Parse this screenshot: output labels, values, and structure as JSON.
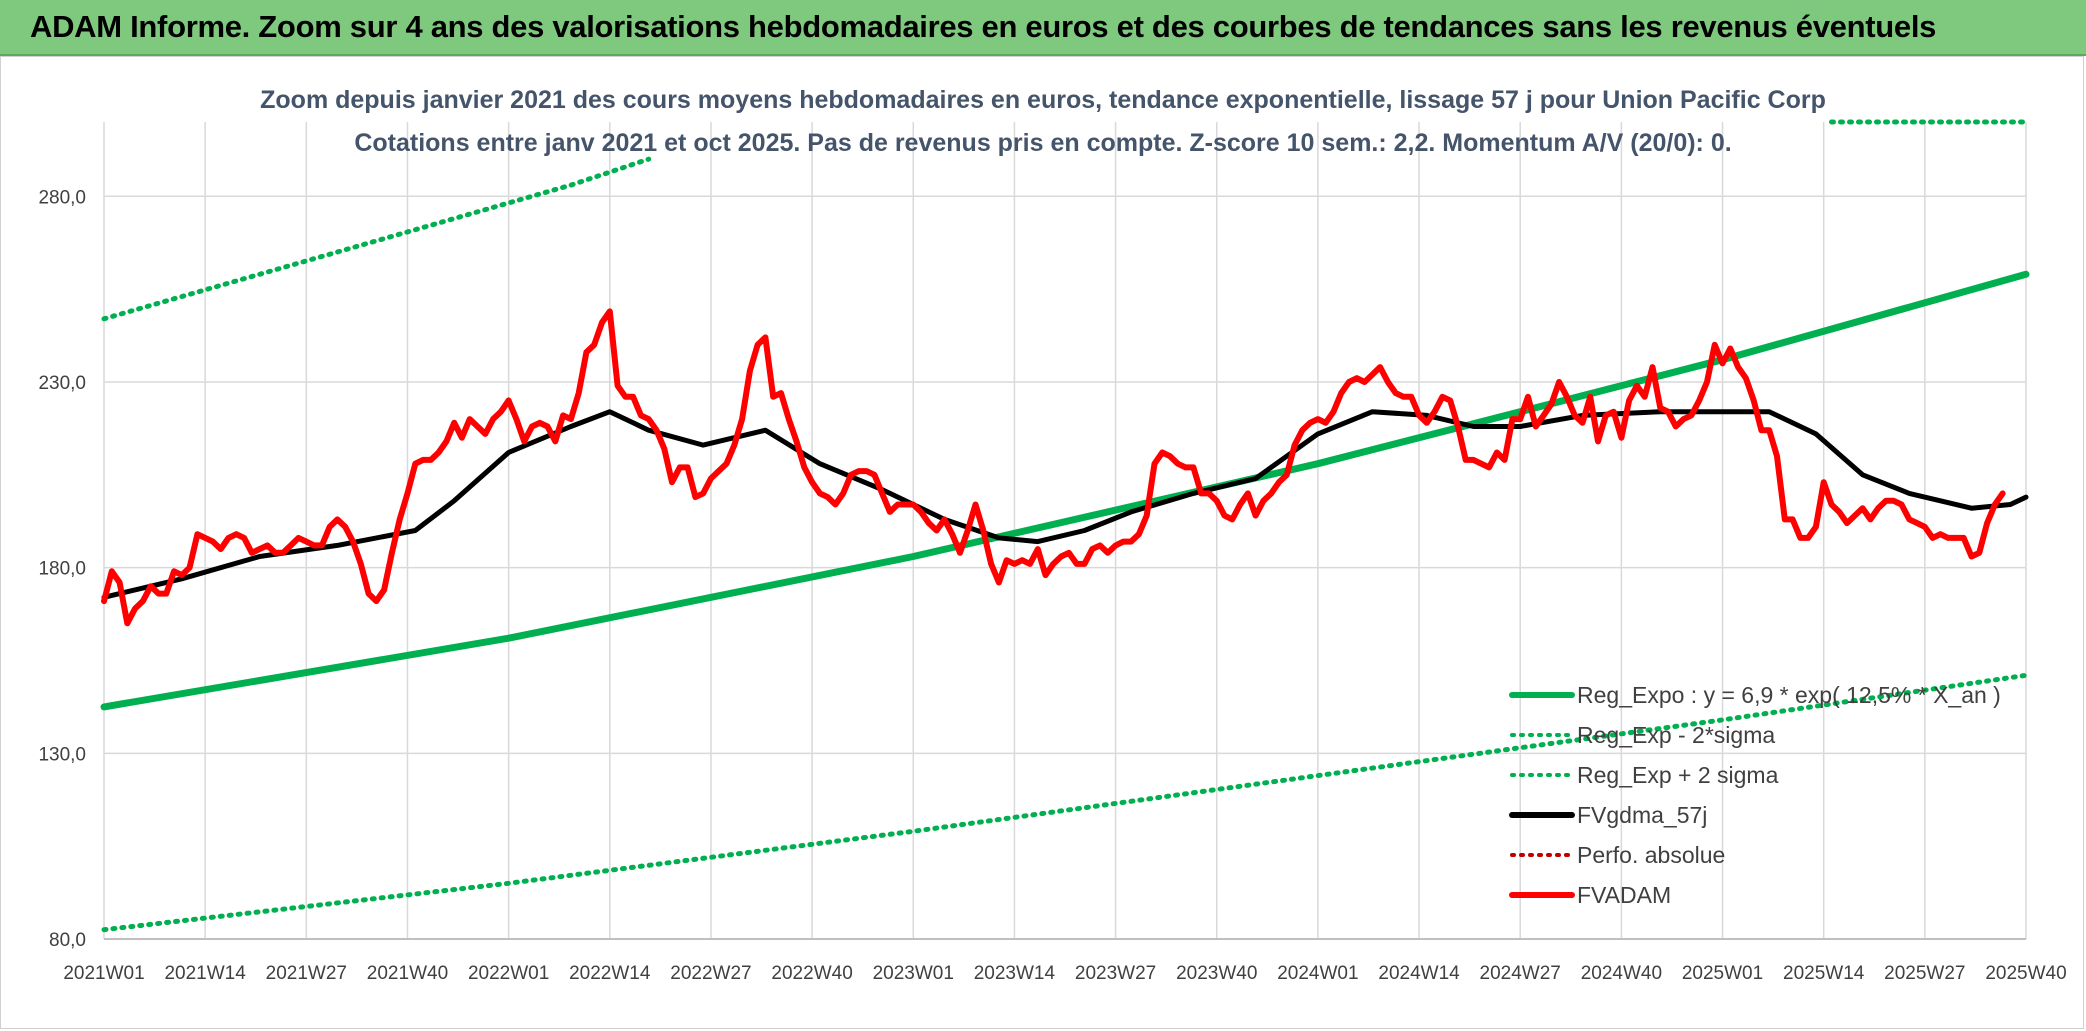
{
  "banner": {
    "title": "ADAM Informe. Zoom sur 4 ans des valorisations hebdomadaires en euros et des courbes de tendances sans les revenus éventuels"
  },
  "colors": {
    "banner": "#7fc97f",
    "trend": "#00b050",
    "smooth": "#000000",
    "price": "#ff0000",
    "perf": "#c00000",
    "grid": "#d9d9d9"
  },
  "chart_data": {
    "type": "line",
    "title": "Zoom depuis janvier 2021 des cours moyens hebdomadaires en euros, tendance exponentielle, lissage 57 j pour Union Pacific Corp",
    "subtitle": "Cotations entre janv 2021 et oct 2025. Pas de revenus pris en compte. Z-score 10 sem.: 2,2. Momentum A/V (20/0): 0.",
    "ylim": [
      80,
      300
    ],
    "yticks": [
      "80,0",
      "130,0",
      "180,0",
      "230,0",
      "280,0"
    ],
    "ytick_values": [
      80,
      130,
      180,
      230,
      280
    ],
    "x_range": [
      0,
      247
    ],
    "xticks": [
      "2021W01",
      "2021W14",
      "2021W27",
      "2021W40",
      "2022W01",
      "2022W14",
      "2022W27",
      "2022W40",
      "2023W01",
      "2023W14",
      "2023W27",
      "2023W40",
      "2024W01",
      "2024W14",
      "2024W27",
      "2024W40",
      "2025W01",
      "2025W14",
      "2025W27",
      "2025W40"
    ],
    "xtick_positions": [
      0,
      13,
      26,
      39,
      52,
      65,
      78,
      91,
      104,
      117,
      130,
      143,
      156,
      169,
      182,
      195,
      208,
      221,
      234,
      247
    ],
    "legend": [
      {
        "name": "Reg_Expo : y = 6,9 * exp( 12,5% * X_an )",
        "style": "solid",
        "color": "#00b050"
      },
      {
        "name": "Reg_Exp - 2*sigma",
        "style": "dotted",
        "color": "#00b050"
      },
      {
        "name": "Reg_Exp + 2 sigma",
        "style": "dotted",
        "color": "#00b050"
      },
      {
        "name": "FVgdma_57j",
        "style": "solid",
        "color": "#000000"
      },
      {
        "name": "Perfo. absolue",
        "style": "dotted",
        "color": "#c00000"
      },
      {
        "name": "FVADAM",
        "style": "solid",
        "color": "#ff0000"
      }
    ],
    "series": [
      {
        "name": "Reg_Expo",
        "points": [
          [
            0,
            142.5
          ],
          [
            52,
            161
          ],
          [
            104,
            183
          ],
          [
            156,
            208
          ],
          [
            208,
            236
          ],
          [
            247,
            259
          ]
        ]
      },
      {
        "name": "Reg_Exp - 2*sigma",
        "points": [
          [
            0,
            82.5
          ],
          [
            52,
            95
          ],
          [
            104,
            109
          ],
          [
            156,
            124
          ],
          [
            208,
            139
          ],
          [
            247,
            151
          ]
        ]
      },
      {
        "name": "Reg_Exp + 2 sigma",
        "points": [
          [
            0,
            247
          ],
          [
            30,
            265
          ],
          [
            60,
            283
          ],
          [
            70,
            290
          ]
        ]
      },
      {
        "name": "Reg_Exp + 2 sigma (right)",
        "points": [
          [
            222,
            300
          ],
          [
            247,
            300
          ]
        ]
      },
      {
        "name": "FVgdma_57j",
        "points": [
          [
            0,
            172
          ],
          [
            10,
            177
          ],
          [
            20,
            183
          ],
          [
            30,
            186
          ],
          [
            40,
            190
          ],
          [
            45,
            198
          ],
          [
            52,
            211
          ],
          [
            60,
            218
          ],
          [
            65,
            222
          ],
          [
            70,
            217
          ],
          [
            77,
            213
          ],
          [
            85,
            217
          ],
          [
            92,
            208
          ],
          [
            100,
            201
          ],
          [
            108,
            193
          ],
          [
            115,
            188
          ],
          [
            120,
            187
          ],
          [
            126,
            190
          ],
          [
            132,
            195
          ],
          [
            140,
            200
          ],
          [
            148,
            204
          ],
          [
            156,
            216
          ],
          [
            163,
            222
          ],
          [
            170,
            221
          ],
          [
            176,
            218
          ],
          [
            182,
            218
          ],
          [
            190,
            221
          ],
          [
            200,
            222
          ],
          [
            208,
            222
          ],
          [
            214,
            222
          ],
          [
            220,
            216
          ],
          [
            226,
            205
          ],
          [
            232,
            200
          ],
          [
            240,
            196
          ],
          [
            245,
            197
          ],
          [
            247,
            199
          ]
        ]
      },
      {
        "name": "FVADAM",
        "points": [
          [
            0,
            171
          ],
          [
            1,
            179
          ],
          [
            2,
            176
          ],
          [
            3,
            165
          ],
          [
            4,
            169
          ],
          [
            5,
            171
          ],
          [
            6,
            175
          ],
          [
            7,
            173
          ],
          [
            8,
            173
          ],
          [
            9,
            179
          ],
          [
            10,
            178
          ],
          [
            11,
            180
          ],
          [
            12,
            189
          ],
          [
            13,
            188
          ],
          [
            14,
            187
          ],
          [
            15,
            185
          ],
          [
            16,
            188
          ],
          [
            17,
            189
          ],
          [
            18,
            188
          ],
          [
            19,
            184
          ],
          [
            20,
            185
          ],
          [
            21,
            186
          ],
          [
            22,
            184
          ],
          [
            23,
            184
          ],
          [
            24,
            186
          ],
          [
            25,
            188
          ],
          [
            26,
            187
          ],
          [
            27,
            186
          ],
          [
            28,
            186
          ],
          [
            29,
            191
          ],
          [
            30,
            193
          ],
          [
            31,
            191
          ],
          [
            32,
            187
          ],
          [
            33,
            181
          ],
          [
            34,
            173
          ],
          [
            35,
            171
          ],
          [
            36,
            174
          ],
          [
            37,
            184
          ],
          [
            38,
            193
          ],
          [
            39,
            200
          ],
          [
            40,
            208
          ],
          [
            41,
            209
          ],
          [
            42,
            209
          ],
          [
            43,
            211
          ],
          [
            44,
            214
          ],
          [
            45,
            219
          ],
          [
            46,
            215
          ],
          [
            47,
            220
          ],
          [
            48,
            218
          ],
          [
            49,
            216
          ],
          [
            50,
            220
          ],
          [
            51,
            222
          ],
          [
            52,
            225
          ],
          [
            53,
            220
          ],
          [
            54,
            214
          ],
          [
            55,
            218
          ],
          [
            56,
            219
          ],
          [
            57,
            218
          ],
          [
            58,
            214
          ],
          [
            59,
            221
          ],
          [
            60,
            220
          ],
          [
            61,
            227
          ],
          [
            62,
            238
          ],
          [
            63,
            240
          ],
          [
            64,
            246
          ],
          [
            65,
            249
          ],
          [
            66,
            229
          ],
          [
            67,
            226
          ],
          [
            68,
            226
          ],
          [
            69,
            221
          ],
          [
            70,
            220
          ],
          [
            71,
            217
          ],
          [
            72,
            212
          ],
          [
            73,
            203
          ],
          [
            74,
            207
          ],
          [
            75,
            207
          ],
          [
            76,
            199
          ],
          [
            77,
            200
          ],
          [
            78,
            204
          ],
          [
            79,
            206
          ],
          [
            80,
            208
          ],
          [
            81,
            213
          ],
          [
            82,
            220
          ],
          [
            83,
            233
          ],
          [
            84,
            240
          ],
          [
            85,
            242
          ],
          [
            86,
            226
          ],
          [
            87,
            227
          ],
          [
            88,
            220
          ],
          [
            89,
            214
          ],
          [
            90,
            207
          ],
          [
            91,
            203
          ],
          [
            92,
            200
          ],
          [
            93,
            199
          ],
          [
            94,
            197
          ],
          [
            95,
            200
          ],
          [
            96,
            205
          ],
          [
            97,
            206
          ],
          [
            98,
            206
          ],
          [
            99,
            205
          ],
          [
            100,
            200
          ],
          [
            101,
            195
          ],
          [
            102,
            197
          ],
          [
            103,
            197
          ],
          [
            104,
            197
          ],
          [
            105,
            195
          ],
          [
            106,
            192
          ],
          [
            107,
            190
          ],
          [
            108,
            193
          ],
          [
            109,
            189
          ],
          [
            110,
            184
          ],
          [
            111,
            190
          ],
          [
            112,
            197
          ],
          [
            113,
            190
          ],
          [
            114,
            181
          ],
          [
            115,
            176
          ],
          [
            116,
            182
          ],
          [
            117,
            181
          ],
          [
            118,
            182
          ],
          [
            119,
            181
          ],
          [
            120,
            185
          ],
          [
            121,
            178
          ],
          [
            122,
            181
          ],
          [
            123,
            183
          ],
          [
            124,
            184
          ],
          [
            125,
            181
          ],
          [
            126,
            181
          ],
          [
            127,
            185
          ],
          [
            128,
            186
          ],
          [
            129,
            184
          ],
          [
            130,
            186
          ],
          [
            131,
            187
          ],
          [
            132,
            187
          ],
          [
            133,
            189
          ],
          [
            134,
            194
          ],
          [
            135,
            208
          ],
          [
            136,
            211
          ],
          [
            137,
            210
          ],
          [
            138,
            208
          ],
          [
            139,
            207
          ],
          [
            140,
            207
          ],
          [
            141,
            200
          ],
          [
            142,
            200
          ],
          [
            143,
            198
          ],
          [
            144,
            194
          ],
          [
            145,
            193
          ],
          [
            146,
            197
          ],
          [
            147,
            200
          ],
          [
            148,
            194
          ],
          [
            149,
            198
          ],
          [
            150,
            200
          ],
          [
            151,
            203
          ],
          [
            152,
            205
          ],
          [
            153,
            213
          ],
          [
            154,
            217
          ],
          [
            155,
            219
          ],
          [
            156,
            220
          ],
          [
            157,
            219
          ],
          [
            158,
            222
          ],
          [
            159,
            227
          ],
          [
            160,
            230
          ],
          [
            161,
            231
          ],
          [
            162,
            230
          ],
          [
            163,
            232
          ],
          [
            164,
            234
          ],
          [
            165,
            230
          ],
          [
            166,
            227
          ],
          [
            167,
            226
          ],
          [
            168,
            226
          ],
          [
            169,
            221
          ],
          [
            170,
            219
          ],
          [
            171,
            222
          ],
          [
            172,
            226
          ],
          [
            173,
            225
          ],
          [
            174,
            218
          ],
          [
            175,
            209
          ],
          [
            176,
            209
          ],
          [
            177,
            208
          ],
          [
            178,
            207
          ],
          [
            179,
            211
          ],
          [
            180,
            209
          ],
          [
            181,
            220
          ],
          [
            182,
            220
          ],
          [
            183,
            226
          ],
          [
            184,
            218
          ],
          [
            185,
            221
          ],
          [
            186,
            224
          ],
          [
            187,
            230
          ],
          [
            188,
            226
          ],
          [
            189,
            221
          ],
          [
            190,
            219
          ],
          [
            191,
            226
          ],
          [
            192,
            214
          ],
          [
            193,
            221
          ],
          [
            194,
            222
          ],
          [
            195,
            215
          ],
          [
            196,
            225
          ],
          [
            197,
            229
          ],
          [
            198,
            226
          ],
          [
            199,
            234
          ],
          [
            200,
            223
          ],
          [
            201,
            222
          ],
          [
            202,
            218
          ],
          [
            203,
            220
          ],
          [
            204,
            221
          ],
          [
            205,
            225
          ],
          [
            206,
            230
          ],
          [
            207,
            240
          ],
          [
            208,
            235
          ],
          [
            209,
            239
          ],
          [
            210,
            234
          ],
          [
            211,
            231
          ],
          [
            212,
            225
          ],
          [
            213,
            217
          ],
          [
            214,
            217
          ],
          [
            215,
            210
          ],
          [
            216,
            193
          ],
          [
            217,
            193
          ],
          [
            218,
            188
          ],
          [
            219,
            188
          ],
          [
            220,
            191
          ],
          [
            221,
            203
          ],
          [
            222,
            197
          ],
          [
            223,
            195
          ],
          [
            224,
            192
          ],
          [
            225,
            194
          ],
          [
            226,
            196
          ],
          [
            227,
            193
          ],
          [
            228,
            196
          ],
          [
            229,
            198
          ],
          [
            230,
            198
          ],
          [
            231,
            197
          ],
          [
            232,
            193
          ],
          [
            233,
            192
          ],
          [
            234,
            191
          ],
          [
            235,
            188
          ],
          [
            236,
            189
          ],
          [
            237,
            188
          ],
          [
            238,
            188
          ],
          [
            239,
            188
          ],
          [
            240,
            183
          ],
          [
            241,
            184
          ],
          [
            242,
            192
          ],
          [
            243,
            197
          ],
          [
            244,
            200
          ]
        ]
      }
    ]
  }
}
